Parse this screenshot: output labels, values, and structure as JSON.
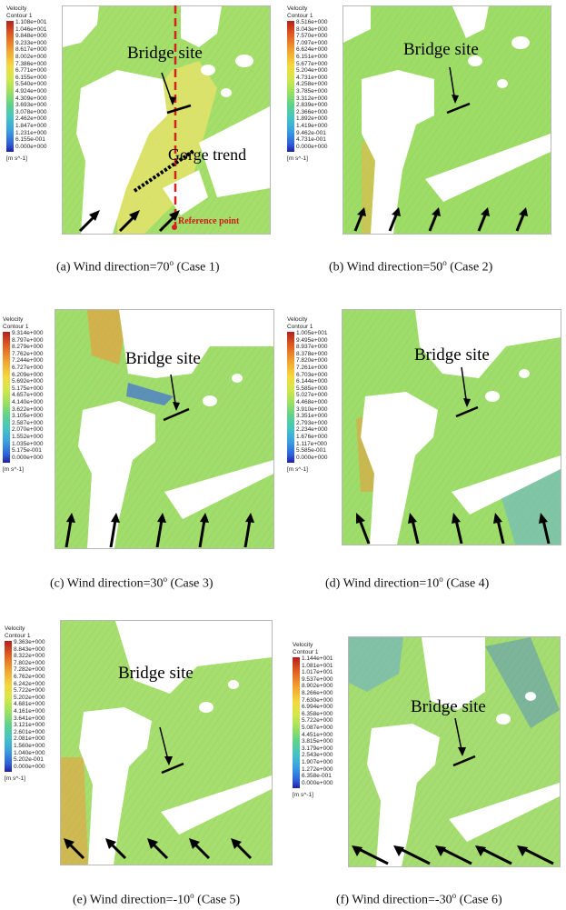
{
  "legend_title_1": "Velocity",
  "legend_title_2": "Contour 1",
  "unit": "[m s^-1]",
  "bridge_label": "Bridge site",
  "gorge_label": "Gorge trend",
  "reference_label": "Reference point",
  "colors": {
    "land": "#ffffff",
    "flow_base": "#9bdc6a",
    "marker_red": "#d42020",
    "arrow": "#000000"
  },
  "panels": [
    {
      "id": "a",
      "caption_pre": "(a) Wind direction=70",
      "caption_sup": "o",
      "caption_post": " (Case 1)",
      "legend": [
        "1.108e+001",
        "1.046e+001",
        "9.848e+000",
        "9.233e+000",
        "8.617e+000",
        "8.002e+000",
        "7.386e+000",
        "6.771e+000",
        "6.155e+000",
        "5.540e+000",
        "4.924e+000",
        "4.309e+000",
        "3.693e+000",
        "3.078e+000",
        "2.462e+000",
        "1.847e+000",
        "1.231e+000",
        "6.155e-001",
        "0.000e+000"
      ]
    },
    {
      "id": "b",
      "caption_pre": "(b) Wind direction=50",
      "caption_sup": "o",
      "caption_post": " (Case 2)",
      "legend": [
        "8.516e+000",
        "8.043e+000",
        "7.570e+000",
        "7.097e+000",
        "6.624e+000",
        "6.151e+000",
        "5.677e+000",
        "5.204e+000",
        "4.731e+000",
        "4.258e+000",
        "3.785e+000",
        "3.312e+000",
        "2.839e+000",
        "2.366e+000",
        "1.892e+000",
        "1.419e+000",
        "9.462e-001",
        "4.731e-001",
        "0.000e+000"
      ]
    },
    {
      "id": "c",
      "caption_pre": "(c) Wind direction=30",
      "caption_sup": "o",
      "caption_post": " (Case 3)",
      "legend": [
        "9.314e+000",
        "8.797e+000",
        "8.279e+000",
        "7.762e+000",
        "7.244e+000",
        "6.727e+000",
        "6.209e+000",
        "5.692e+000",
        "5.175e+000",
        "4.657e+000",
        "4.140e+000",
        "3.622e+000",
        "3.105e+000",
        "2.587e+000",
        "2.070e+000",
        "1.552e+000",
        "1.035e+000",
        "5.175e-001",
        "0.000e+000"
      ]
    },
    {
      "id": "d",
      "caption_pre": "(d) Wind direction=10",
      "caption_sup": "o",
      "caption_post": " (Case 4)",
      "legend": [
        "1.005e+001",
        "9.495e+000",
        "8.937e+000",
        "8.378e+000",
        "7.820e+000",
        "7.261e+000",
        "6.703e+000",
        "6.144e+000",
        "5.585e+000",
        "5.027e+000",
        "4.468e+000",
        "3.910e+000",
        "3.351e+000",
        "2.793e+000",
        "2.234e+000",
        "1.676e+000",
        "1.117e+000",
        "5.585e-001",
        "0.000e+000"
      ]
    },
    {
      "id": "e",
      "caption_pre": "(e) Wind direction=-10",
      "caption_sup": "o",
      "caption_post": " (Case 5)",
      "legend": [
        "9.363e+000",
        "8.843e+000",
        "8.322e+000",
        "7.802e+000",
        "7.282e+000",
        "6.762e+000",
        "6.242e+000",
        "5.722e+000",
        "5.202e+000",
        "4.681e+000",
        "4.161e+000",
        "3.641e+000",
        "3.121e+000",
        "2.601e+000",
        "2.081e+000",
        "1.560e+000",
        "1.040e+000",
        "5.202e-001",
        "0.000e+000"
      ]
    },
    {
      "id": "f",
      "caption_pre": "(f) Wind direction=-30",
      "caption_sup": "o",
      "caption_post": " (Case 6)",
      "legend": [
        "1.144e+001",
        "1.081e+001",
        "1.017e+001",
        "9.537e+000",
        "8.902e+000",
        "8.266e+000",
        "7.630e+000",
        "6.994e+000",
        "6.358e+000",
        "5.722e+000",
        "5.087e+000",
        "4.451e+000",
        "3.815e+000",
        "3.179e+000",
        "2.543e+000",
        "1.907e+000",
        "1.272e+000",
        "6.358e-001",
        "0.000e+000"
      ]
    }
  ]
}
